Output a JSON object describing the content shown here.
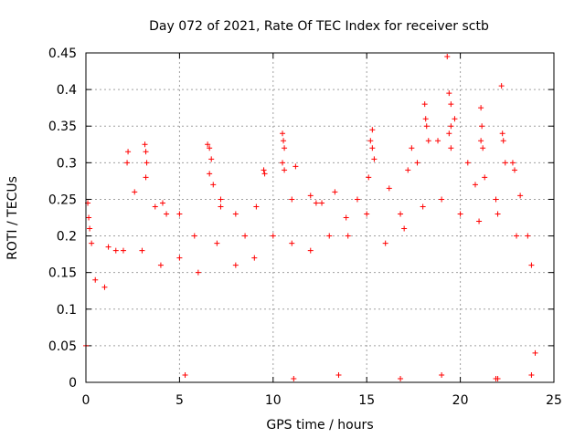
{
  "chart_data": {
    "type": "scatter",
    "title": "Day 072 of 2021, Rate Of TEC Index for receiver sctb",
    "xlabel": "GPS time / hours",
    "ylabel": "ROTI / TECUs",
    "xlim": [
      0,
      25
    ],
    "ylim": [
      0,
      0.45
    ],
    "xticks": [
      0,
      5,
      10,
      15,
      20,
      25
    ],
    "yticks": [
      0,
      0.05,
      0.1,
      0.15,
      0.2,
      0.25,
      0.3,
      0.35,
      0.4,
      0.45
    ],
    "grid": true,
    "marker": "+",
    "color": "#ff0000",
    "series": [
      {
        "points": [
          [
            0.1,
            0.245
          ],
          [
            0.15,
            0.225
          ],
          [
            0.2,
            0.21
          ],
          [
            0.3,
            0.19
          ],
          [
            1.2,
            0.185
          ],
          [
            1.6,
            0.18
          ],
          [
            2.2,
            0.3
          ],
          [
            2.25,
            0.315
          ],
          [
            2.6,
            0.26
          ],
          [
            3.15,
            0.325
          ],
          [
            3.2,
            0.315
          ],
          [
            3.25,
            0.3
          ],
          [
            3.2,
            0.28
          ],
          [
            3.7,
            0.24
          ],
          [
            4.1,
            0.245
          ],
          [
            4.3,
            0.23
          ],
          [
            5.0,
            0.23
          ],
          [
            5.8,
            0.2
          ],
          [
            6.5,
            0.325
          ],
          [
            6.6,
            0.32
          ],
          [
            6.7,
            0.305
          ],
          [
            6.6,
            0.285
          ],
          [
            6.8,
            0.27
          ],
          [
            7.2,
            0.25
          ],
          [
            7.2,
            0.24
          ],
          [
            8.0,
            0.23
          ],
          [
            8.5,
            0.2
          ],
          [
            9.1,
            0.24
          ],
          [
            9.5,
            0.29
          ],
          [
            9.55,
            0.285
          ],
          [
            10.5,
            0.34
          ],
          [
            10.55,
            0.33
          ],
          [
            10.6,
            0.32
          ],
          [
            10.5,
            0.3
          ],
          [
            10.6,
            0.29
          ],
          [
            11.0,
            0.25
          ],
          [
            11.2,
            0.295
          ],
          [
            12.0,
            0.255
          ],
          [
            12.3,
            0.245
          ],
          [
            12.6,
            0.245
          ],
          [
            13.3,
            0.26
          ],
          [
            13.9,
            0.225
          ],
          [
            14.5,
            0.25
          ],
          [
            15.2,
            0.33
          ],
          [
            15.3,
            0.345
          ],
          [
            15.3,
            0.32
          ],
          [
            15.4,
            0.305
          ],
          [
            15.1,
            0.28
          ],
          [
            16.2,
            0.265
          ],
          [
            16.8,
            0.23
          ],
          [
            17.2,
            0.29
          ],
          [
            17.4,
            0.32
          ],
          [
            17.7,
            0.3
          ],
          [
            18.1,
            0.38
          ],
          [
            18.15,
            0.36
          ],
          [
            18.2,
            0.35
          ],
          [
            18.3,
            0.33
          ],
          [
            18.8,
            0.33
          ],
          [
            19.3,
            0.445
          ],
          [
            19.4,
            0.395
          ],
          [
            19.5,
            0.38
          ],
          [
            19.7,
            0.36
          ],
          [
            19.5,
            0.35
          ],
          [
            19.4,
            0.34
          ],
          [
            19.5,
            0.32
          ],
          [
            20.4,
            0.3
          ],
          [
            20.8,
            0.27
          ],
          [
            21.1,
            0.375
          ],
          [
            21.15,
            0.35
          ],
          [
            21.1,
            0.33
          ],
          [
            21.2,
            0.32
          ],
          [
            21.3,
            0.28
          ],
          [
            21.9,
            0.25
          ],
          [
            22.2,
            0.405
          ],
          [
            22.25,
            0.34
          ],
          [
            22.3,
            0.33
          ],
          [
            22.4,
            0.3
          ],
          [
            22.8,
            0.3
          ],
          [
            22.9,
            0.29
          ],
          [
            23.2,
            0.255
          ],
          [
            23.6,
            0.2
          ],
          [
            23.8,
            0.16
          ],
          [
            0.5,
            0.14
          ],
          [
            1.0,
            0.13
          ],
          [
            2.0,
            0.18
          ],
          [
            3.0,
            0.18
          ],
          [
            4.0,
            0.16
          ],
          [
            5.0,
            0.17
          ],
          [
            6.0,
            0.15
          ],
          [
            7.0,
            0.19
          ],
          [
            8.0,
            0.16
          ],
          [
            9.0,
            0.17
          ],
          [
            10.0,
            0.2
          ],
          [
            11.0,
            0.19
          ],
          [
            12.0,
            0.18
          ],
          [
            13.0,
            0.2
          ],
          [
            14.0,
            0.2
          ],
          [
            15.0,
            0.23
          ],
          [
            16.0,
            0.19
          ],
          [
            17.0,
            0.21
          ],
          [
            18.0,
            0.24
          ],
          [
            19.0,
            0.25
          ],
          [
            20.0,
            0.23
          ],
          [
            21.0,
            0.22
          ],
          [
            22.0,
            0.23
          ],
          [
            23.0,
            0.2
          ],
          [
            5.3,
            0.01
          ],
          [
            11.1,
            0.005
          ],
          [
            13.5,
            0.01
          ],
          [
            16.8,
            0.005
          ],
          [
            19.0,
            0.01
          ],
          [
            21.9,
            0.005
          ],
          [
            22.0,
            0.005
          ],
          [
            23.8,
            0.01
          ],
          [
            0.0,
            0.05
          ],
          [
            24.0,
            0.04
          ]
        ]
      }
    ]
  }
}
